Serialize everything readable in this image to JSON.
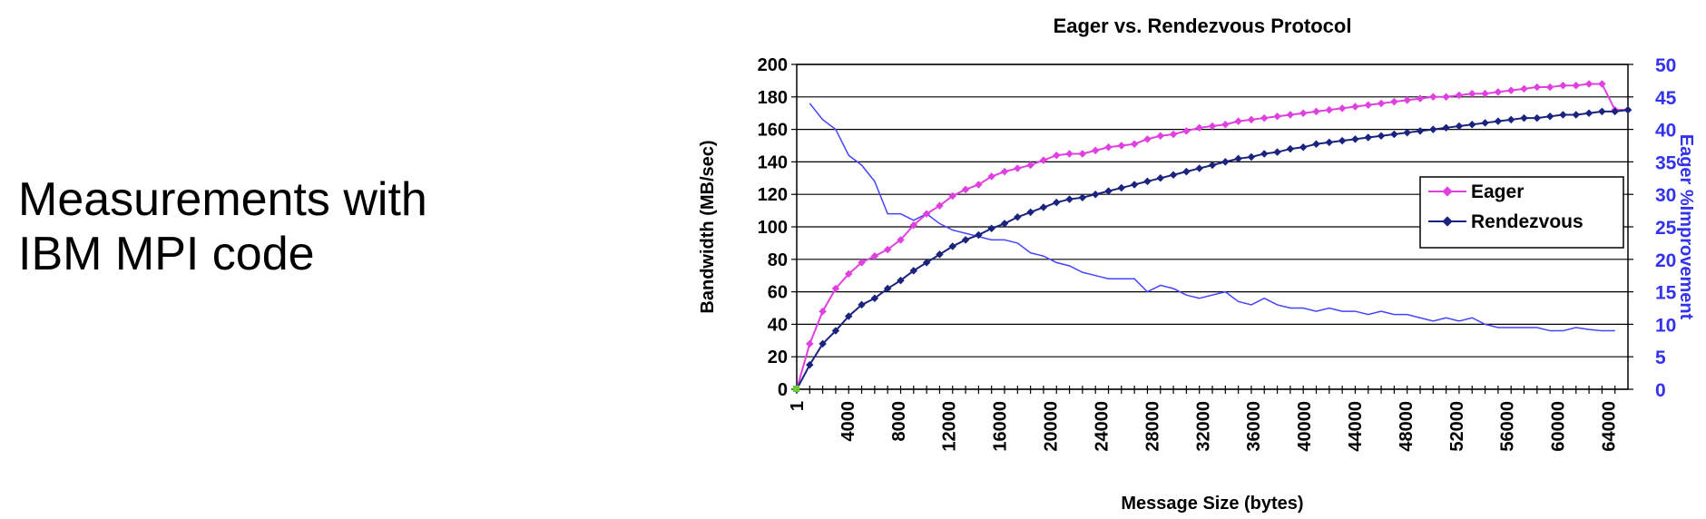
{
  "caption": {
    "line1": "Measurements with",
    "line2": "IBM MPI code"
  },
  "chart_data": {
    "type": "line",
    "title": "Eager vs. Rendezvous Protocol",
    "xlabel": "Message Size (bytes)",
    "ylabel": "Bandwidth (MB/sec)",
    "y2label": "Eager %Improvement",
    "x_tick_labels": [
      "1",
      "4000",
      "8000",
      "12000",
      "16000",
      "20000",
      "24000",
      "28000",
      "32000",
      "36000",
      "40000",
      "44000",
      "48000",
      "52000",
      "56000",
      "60000",
      "64000"
    ],
    "x_ticks": [
      1,
      4000,
      8000,
      12000,
      16000,
      20000,
      24000,
      28000,
      32000,
      36000,
      40000,
      44000,
      48000,
      52000,
      56000,
      60000,
      64000
    ],
    "xlim": [
      1,
      65536
    ],
    "ylim": [
      0,
      200
    ],
    "y_ticks": [
      0,
      20,
      40,
      60,
      80,
      100,
      120,
      140,
      160,
      180,
      200
    ],
    "y2lim": [
      0,
      50
    ],
    "y2_ticks": [
      0,
      5,
      10,
      15,
      20,
      25,
      30,
      35,
      40,
      45,
      50
    ],
    "grid": "horizontal",
    "legend_position": "right",
    "colors": {
      "eager": "#e040e0",
      "rendezvous": "#1a237e",
      "improvement": "#4444ff"
    },
    "series": [
      {
        "name": "Eager",
        "axis": "left",
        "points": [
          [
            1,
            0
          ],
          [
            1024,
            28
          ],
          [
            2048,
            48
          ],
          [
            3072,
            62
          ],
          [
            4096,
            71
          ],
          [
            5120,
            78
          ],
          [
            6144,
            82
          ],
          [
            7168,
            86
          ],
          [
            8192,
            92
          ],
          [
            9216,
            101
          ],
          [
            10240,
            108
          ],
          [
            11264,
            113
          ],
          [
            12288,
            119
          ],
          [
            13312,
            123
          ],
          [
            14336,
            126
          ],
          [
            15360,
            131
          ],
          [
            16384,
            134
          ],
          [
            17408,
            136
          ],
          [
            18432,
            138
          ],
          [
            19456,
            141
          ],
          [
            20480,
            144
          ],
          [
            21504,
            145
          ],
          [
            22528,
            145
          ],
          [
            23552,
            147
          ],
          [
            24576,
            149
          ],
          [
            25600,
            150
          ],
          [
            26624,
            151
          ],
          [
            27648,
            154
          ],
          [
            28672,
            156
          ],
          [
            29696,
            157
          ],
          [
            30720,
            159
          ],
          [
            31744,
            161
          ],
          [
            32768,
            162
          ],
          [
            33792,
            163
          ],
          [
            34816,
            165
          ],
          [
            35840,
            166
          ],
          [
            36864,
            167
          ],
          [
            37888,
            168
          ],
          [
            38912,
            169
          ],
          [
            39936,
            170
          ],
          [
            40960,
            171
          ],
          [
            41984,
            172
          ],
          [
            43008,
            173
          ],
          [
            44032,
            174
          ],
          [
            45056,
            175
          ],
          [
            46080,
            176
          ],
          [
            47104,
            177
          ],
          [
            48128,
            178
          ],
          [
            49152,
            179
          ],
          [
            50176,
            180
          ],
          [
            51200,
            180
          ],
          [
            52224,
            181
          ],
          [
            53248,
            182
          ],
          [
            54272,
            182
          ],
          [
            55296,
            183
          ],
          [
            56320,
            184
          ],
          [
            57344,
            185
          ],
          [
            58368,
            186
          ],
          [
            59392,
            186
          ],
          [
            60416,
            187
          ],
          [
            61440,
            187
          ],
          [
            62464,
            188
          ],
          [
            63488,
            188
          ],
          [
            64512,
            172
          ],
          [
            65536,
            172
          ]
        ]
      },
      {
        "name": "Rendezvous",
        "axis": "left",
        "points": [
          [
            1,
            0
          ],
          [
            1024,
            15
          ],
          [
            2048,
            28
          ],
          [
            3072,
            36
          ],
          [
            4096,
            45
          ],
          [
            5120,
            52
          ],
          [
            6144,
            56
          ],
          [
            7168,
            62
          ],
          [
            8192,
            67
          ],
          [
            9216,
            73
          ],
          [
            10240,
            78
          ],
          [
            11264,
            83
          ],
          [
            12288,
            88
          ],
          [
            13312,
            92
          ],
          [
            14336,
            95
          ],
          [
            15360,
            99
          ],
          [
            16384,
            102
          ],
          [
            17408,
            106
          ],
          [
            18432,
            109
          ],
          [
            19456,
            112
          ],
          [
            20480,
            115
          ],
          [
            21504,
            117
          ],
          [
            22528,
            118
          ],
          [
            23552,
            120
          ],
          [
            24576,
            122
          ],
          [
            25600,
            124
          ],
          [
            26624,
            126
          ],
          [
            27648,
            128
          ],
          [
            28672,
            130
          ],
          [
            29696,
            132
          ],
          [
            30720,
            134
          ],
          [
            31744,
            136
          ],
          [
            32768,
            138
          ],
          [
            33792,
            140
          ],
          [
            34816,
            142
          ],
          [
            35840,
            143
          ],
          [
            36864,
            145
          ],
          [
            37888,
            146
          ],
          [
            38912,
            148
          ],
          [
            39936,
            149
          ],
          [
            40960,
            151
          ],
          [
            41984,
            152
          ],
          [
            43008,
            153
          ],
          [
            44032,
            154
          ],
          [
            45056,
            155
          ],
          [
            46080,
            156
          ],
          [
            47104,
            157
          ],
          [
            48128,
            158
          ],
          [
            49152,
            159
          ],
          [
            50176,
            160
          ],
          [
            51200,
            161
          ],
          [
            52224,
            162
          ],
          [
            53248,
            163
          ],
          [
            54272,
            164
          ],
          [
            55296,
            165
          ],
          [
            56320,
            166
          ],
          [
            57344,
            167
          ],
          [
            58368,
            167
          ],
          [
            59392,
            168
          ],
          [
            60416,
            169
          ],
          [
            61440,
            169
          ],
          [
            62464,
            170
          ],
          [
            63488,
            171
          ],
          [
            64512,
            171
          ],
          [
            65536,
            172
          ]
        ]
      },
      {
        "axis": "right",
        "points": [
          [
            1024,
            44
          ],
          [
            2048,
            41.5
          ],
          [
            3072,
            40
          ],
          [
            4096,
            36
          ],
          [
            5120,
            34.5
          ],
          [
            6144,
            32
          ],
          [
            7168,
            27
          ],
          [
            8192,
            27
          ],
          [
            9216,
            26
          ],
          [
            10240,
            27
          ],
          [
            11264,
            25.5
          ],
          [
            12288,
            24.5
          ],
          [
            13312,
            24
          ],
          [
            14336,
            23.5
          ],
          [
            15360,
            23
          ],
          [
            16384,
            23
          ],
          [
            17408,
            22.5
          ],
          [
            18432,
            21
          ],
          [
            19456,
            20.5
          ],
          [
            20480,
            19.5
          ],
          [
            21504,
            19
          ],
          [
            22528,
            18
          ],
          [
            23552,
            17.5
          ],
          [
            24576,
            17
          ],
          [
            25600,
            17
          ],
          [
            26624,
            17
          ],
          [
            27648,
            15
          ],
          [
            28672,
            16
          ],
          [
            29696,
            15.5
          ],
          [
            30720,
            14.5
          ],
          [
            31744,
            14
          ],
          [
            32768,
            14.5
          ],
          [
            33792,
            15
          ],
          [
            34816,
            13.5
          ],
          [
            35840,
            13
          ],
          [
            36864,
            14
          ],
          [
            37888,
            13
          ],
          [
            38912,
            12.5
          ],
          [
            39936,
            12.5
          ],
          [
            40960,
            12
          ],
          [
            41984,
            12.5
          ],
          [
            43008,
            12
          ],
          [
            44032,
            12
          ],
          [
            45056,
            11.5
          ],
          [
            46080,
            12
          ],
          [
            47104,
            11.5
          ],
          [
            48128,
            11.5
          ],
          [
            49152,
            11
          ],
          [
            50176,
            10.5
          ],
          [
            51200,
            11
          ],
          [
            52224,
            10.5
          ],
          [
            53248,
            11
          ],
          [
            54272,
            10
          ],
          [
            55296,
            9.5
          ],
          [
            56320,
            9.5
          ],
          [
            57344,
            9.5
          ],
          [
            58368,
            9.5
          ],
          [
            59392,
            9
          ],
          [
            60416,
            9
          ],
          [
            61440,
            9.5
          ],
          [
            62464,
            9.2
          ],
          [
            63488,
            9
          ],
          [
            64512,
            9
          ]
        ]
      }
    ]
  }
}
